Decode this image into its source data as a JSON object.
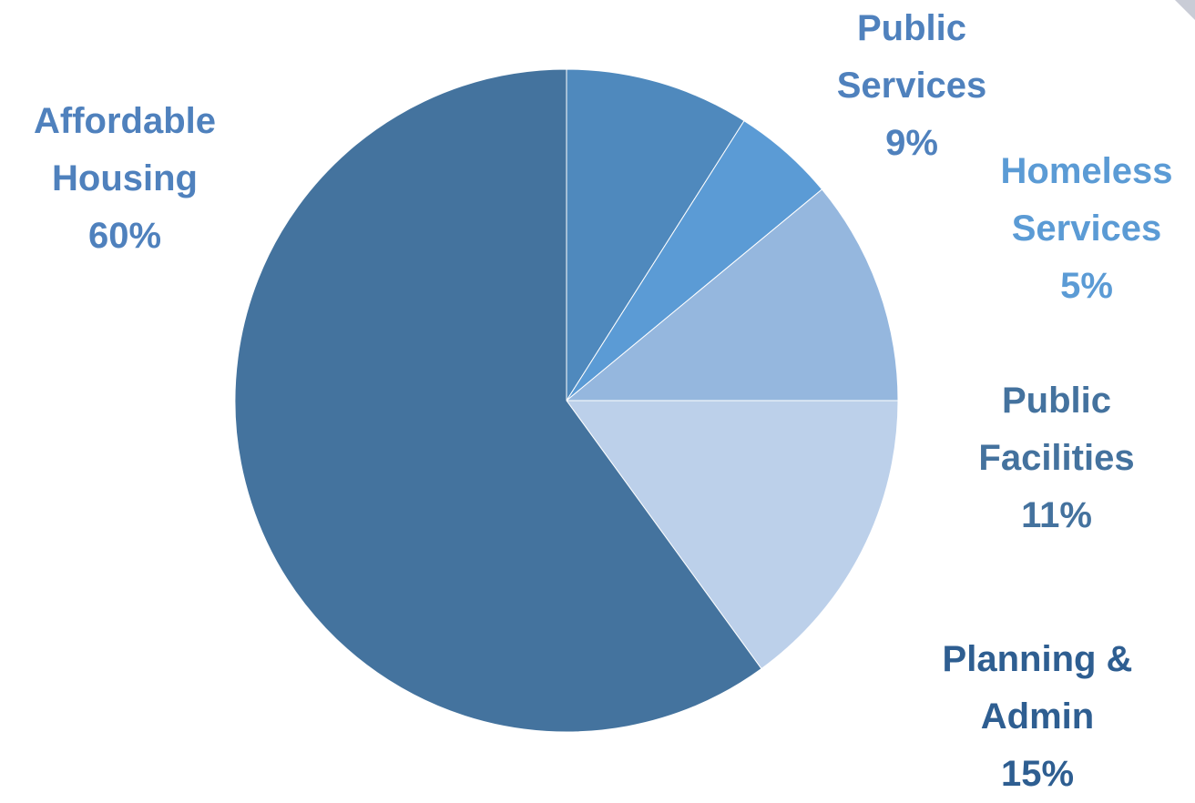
{
  "chart_data": {
    "type": "pie",
    "start_angle_deg": 0,
    "direction": "clockwise",
    "slices": [
      {
        "label": "Public Services",
        "lines": [
          "Public",
          "Services"
        ],
        "percent_label": "9%",
        "value": 9,
        "color": "#4f89bd",
        "label_color": "#4f81bd"
      },
      {
        "label": "Homeless Services",
        "lines": [
          "Homeless",
          "Services"
        ],
        "percent_label": "5%",
        "value": 5,
        "color": "#5b9bd5",
        "label_color": "#5b9bd5"
      },
      {
        "label": "Public Facilities",
        "lines": [
          "Public",
          "Facilities"
        ],
        "percent_label": "11%",
        "value": 11,
        "color": "#95b7de",
        "label_color": "#44729e"
      },
      {
        "label": "Planning & Admin",
        "lines": [
          "Planning &",
          "Admin"
        ],
        "percent_label": "15%",
        "value": 15,
        "color": "#bcd0ea",
        "label_color": "#2e5e91"
      },
      {
        "label": "Affordable Housing",
        "lines": [
          "Affordable",
          "Housing"
        ],
        "percent_label": "60%",
        "value": 60,
        "color": "#44739e",
        "label_color": "#4f81bd"
      }
    ]
  }
}
